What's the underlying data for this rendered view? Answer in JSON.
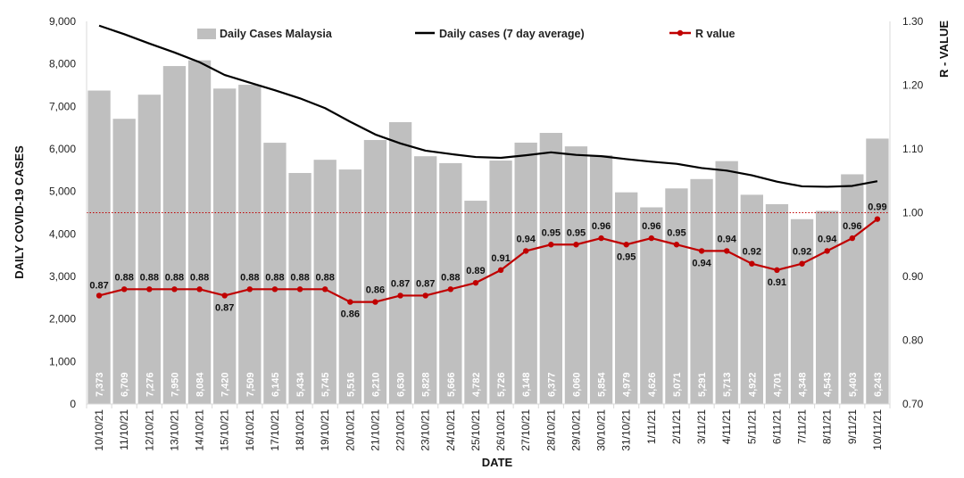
{
  "chart_data": {
    "type": "bar",
    "xlabel": "DATE",
    "ylabel": "DAILY COVID-19 CASES",
    "y2label": "R - VALUE",
    "ylim": [
      0,
      9000
    ],
    "y2lim": [
      0.7,
      1.3
    ],
    "y_ticks": [
      "0",
      "1,000",
      "2,000",
      "3,000",
      "4,000",
      "5,000",
      "6,000",
      "7,000",
      "8,000",
      "9,000"
    ],
    "y2_ticks": [
      "0.70",
      "0.80",
      "0.90",
      "1.00",
      "1.10",
      "1.20",
      "1.30"
    ],
    "reference_line": 1.0,
    "categories": [
      "10/10/21",
      "11/10/21",
      "12/10/21",
      "13/10/21",
      "14/10/21",
      "15/10/21",
      "16/10/21",
      "17/10/21",
      "18/10/21",
      "19/10/21",
      "20/10/21",
      "21/10/21",
      "22/10/21",
      "23/10/21",
      "24/10/21",
      "25/10/21",
      "26/10/21",
      "27/10/21",
      "28/10/21",
      "29/10/21",
      "30/10/21",
      "31/10/21",
      "1/11/21",
      "2/11/21",
      "3/11/21",
      "4/11/21",
      "5/11/21",
      "6/11/21",
      "7/11/21",
      "8/11/21",
      "9/11/21",
      "10/11/21"
    ],
    "series": [
      {
        "name": "Daily Cases Malaysia",
        "kind": "bar",
        "axis": "left",
        "color": "#bfbfbf",
        "values": [
          7373,
          6709,
          7276,
          7950,
          8084,
          7420,
          7509,
          6145,
          5434,
          5745,
          5516,
          6210,
          6630,
          5828,
          5666,
          4782,
          5726,
          6148,
          6377,
          6060,
          5854,
          4979,
          4626,
          5071,
          5291,
          5713,
          4922,
          4701,
          4348,
          4543,
          5403,
          6243
        ],
        "labels": [
          "7,373",
          "6,709",
          "7,276",
          "7,950",
          "8,084",
          "7,420",
          "7,509",
          "6,145",
          "5,434",
          "5,745",
          "5,516",
          "6,210",
          "6,630",
          "5,828",
          "5,666",
          "4,782",
          "5,726",
          "6,148",
          "6,377",
          "6,060",
          "5,854",
          "4,979",
          "4,626",
          "5,071",
          "5,291",
          "5,713",
          "4,922",
          "4,701",
          "4,348",
          "4,543",
          "5,403",
          "6,243"
        ]
      },
      {
        "name": "Daily cases (7 day average)",
        "kind": "line",
        "axis": "left",
        "color": "#000000",
        "values": [
          8900,
          8700,
          8480,
          8270,
          8040,
          7740,
          7560,
          7380,
          7190,
          6960,
          6640,
          6340,
          6130,
          5960,
          5880,
          5810,
          5790,
          5850,
          5920,
          5860,
          5830,
          5760,
          5700,
          5650,
          5550,
          5490,
          5380,
          5230,
          5120,
          5110,
          5130,
          5240
        ]
      },
      {
        "name": "R value",
        "kind": "line",
        "axis": "right",
        "color": "#c00000",
        "values": [
          0.87,
          0.88,
          0.88,
          0.88,
          0.88,
          0.87,
          0.88,
          0.88,
          0.88,
          0.88,
          0.86,
          0.86,
          0.87,
          0.87,
          0.88,
          0.89,
          0.91,
          0.94,
          0.95,
          0.95,
          0.96,
          0.95,
          0.96,
          0.95,
          0.94,
          0.94,
          0.92,
          0.91,
          0.92,
          0.94,
          0.96,
          0.99
        ],
        "labels": [
          "0.87",
          "0.88",
          "0.88",
          "0.88",
          "0.88",
          "0.87",
          "0.88",
          "0.88",
          "0.88",
          "0.88",
          "0.86",
          "0.86",
          "0.87",
          "0.87",
          "0.88",
          "0.89",
          "0.91",
          "0.94",
          "0.95",
          "0.95",
          "0.96",
          "0.95",
          "0.96",
          "0.95",
          "0.94",
          "0.94",
          "0.92",
          "0.91",
          "0.92",
          "0.94",
          "0.96",
          "0.99"
        ]
      }
    ],
    "legend": [
      "Daily Cases Malaysia",
      "Daily cases (7 day average)",
      "R value"
    ]
  }
}
